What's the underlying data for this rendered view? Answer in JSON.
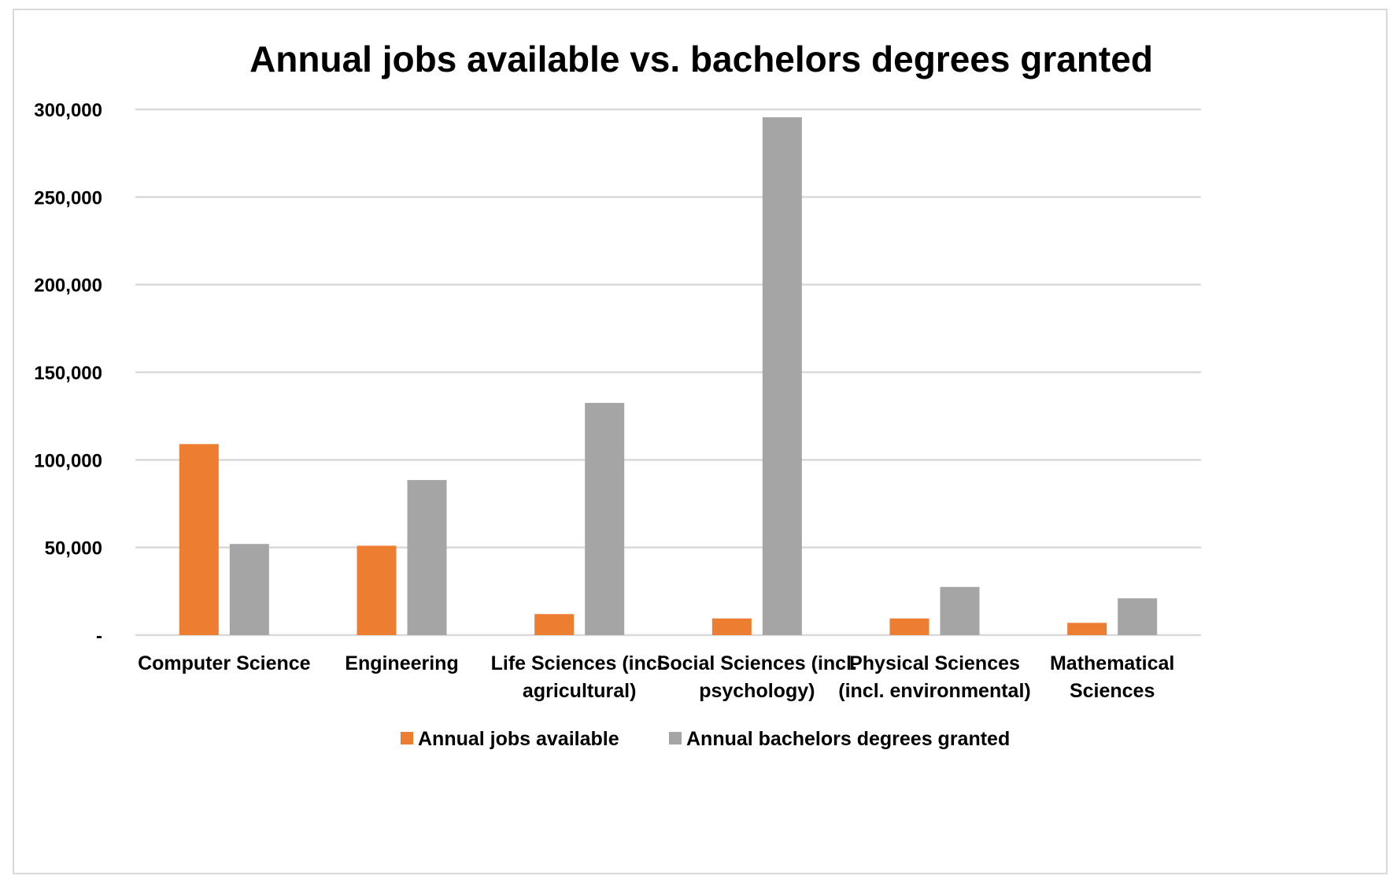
{
  "chart_data": {
    "type": "bar",
    "title": "Annual jobs available vs. bachelors degrees granted",
    "xlabel": "",
    "ylabel": "",
    "categories": [
      [
        "Computer Science"
      ],
      [
        "Engineering"
      ],
      [
        "Life Sciences (incl.",
        "agricultural)"
      ],
      [
        "Social Sciences (incl.",
        "psychology)"
      ],
      [
        "Physical Sciences",
        "(incl. environmental)"
      ],
      [
        "Mathematical",
        "Sciences"
      ]
    ],
    "series": [
      {
        "name": "Annual jobs available",
        "color": "#ed7d31",
        "values": [
          109000,
          51000,
          12000,
          9500,
          9500,
          7000
        ]
      },
      {
        "name": "Annual bachelors degrees granted",
        "color": "#a5a5a5",
        "values": [
          52000,
          88500,
          132500,
          295500,
          27500,
          21000
        ]
      }
    ],
    "ylim": [
      0,
      300000
    ],
    "yticks": [
      {
        "value": 0,
        "label": "-"
      },
      {
        "value": 50000,
        "label": "50,000"
      },
      {
        "value": 100000,
        "label": "100,000"
      },
      {
        "value": 150000,
        "label": "150,000"
      },
      {
        "value": 200000,
        "label": "200,000"
      },
      {
        "value": 250000,
        "label": "250,000"
      },
      {
        "value": 300000,
        "label": "300,000"
      }
    ],
    "grid": true,
    "legend_position": "bottom",
    "gridline_color": "#d9d9d9"
  }
}
